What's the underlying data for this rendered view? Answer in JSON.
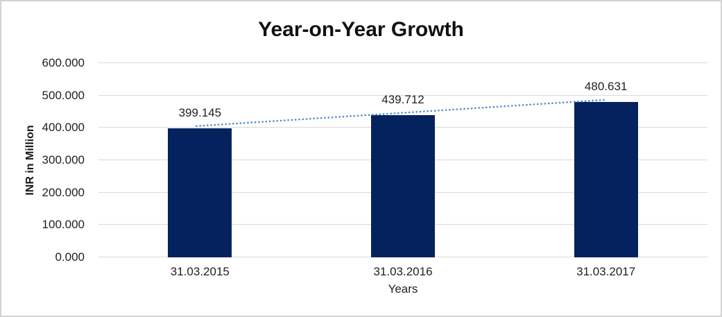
{
  "chart_data": {
    "type": "bar",
    "title": "Year-on-Year Growth",
    "xlabel": "Years",
    "ylabel": "INR in Million",
    "categories": [
      "31.03.2015",
      "31.03.2016",
      "31.03.2017"
    ],
    "values": [
      399.145,
      439.712,
      480.631
    ],
    "data_labels": [
      "399.145",
      "439.712",
      "480.631"
    ],
    "ylim": [
      0,
      600
    ],
    "ytick_step": 100,
    "ytick_labels": [
      "0.000",
      "100.000",
      "200.000",
      "300.000",
      "400.000",
      "500.000",
      "600.000"
    ],
    "grid": true,
    "legend_position": "none",
    "bar_color": "#03225e",
    "trendline": {
      "type": "linear",
      "style": "dotted",
      "color": "#4f87c9"
    }
  }
}
